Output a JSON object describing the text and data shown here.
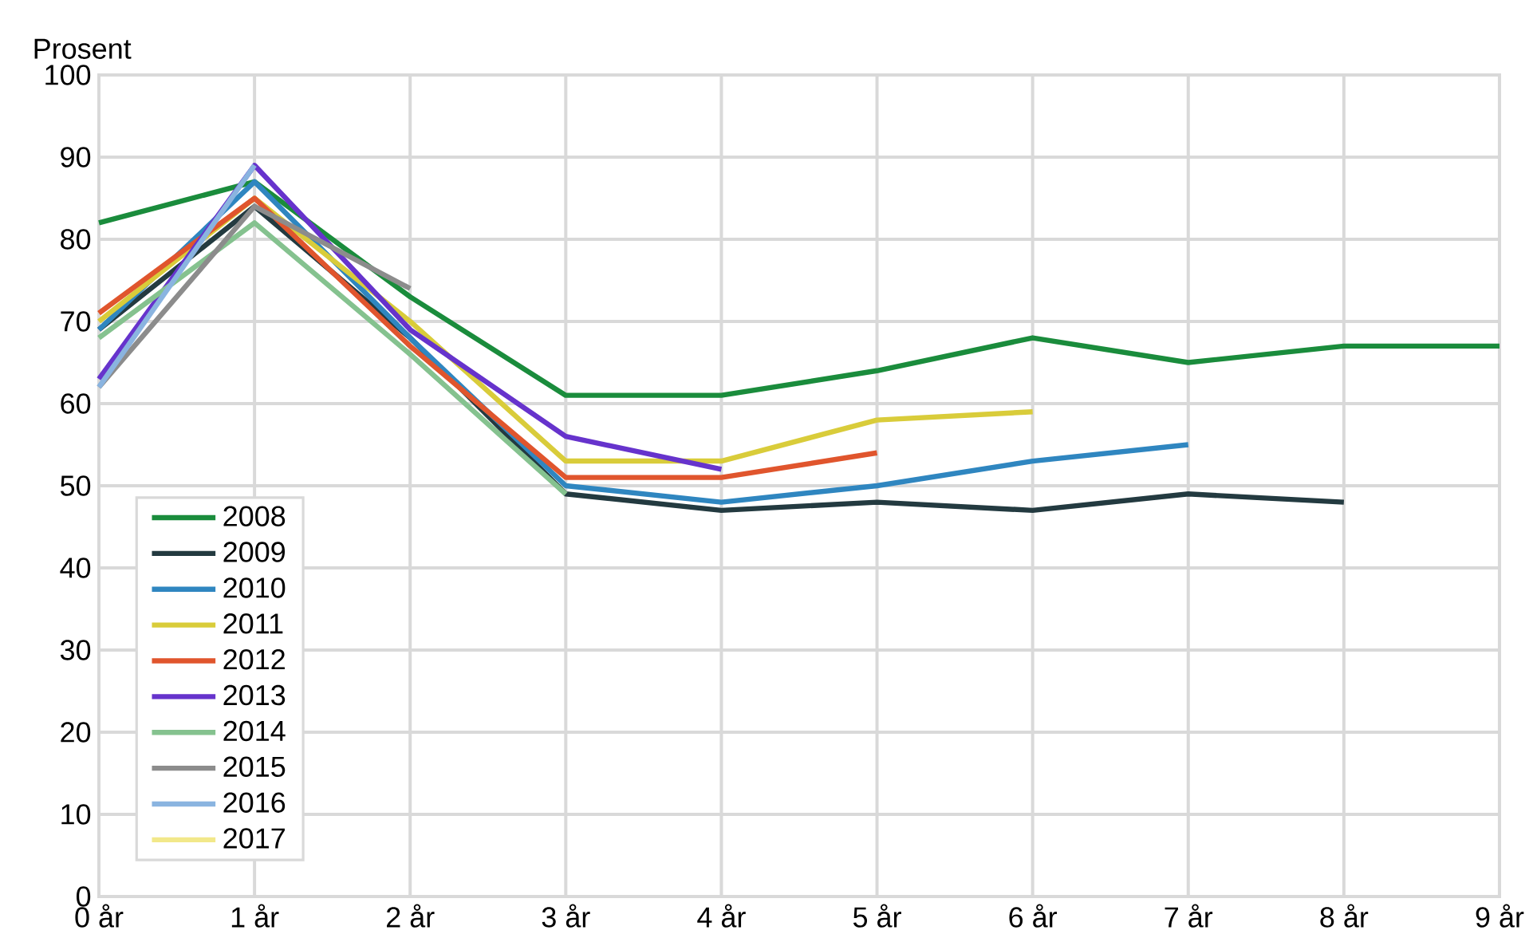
{
  "chart_data": {
    "type": "line",
    "ylabel": "Prosent",
    "categories": [
      "0 år",
      "1 år",
      "2 år",
      "3 år",
      "4 år",
      "5 år",
      "6 år",
      "7 år",
      "8 år",
      "9 år"
    ],
    "ylim": [
      0,
      100
    ],
    "yticks": [
      0,
      10,
      20,
      30,
      40,
      50,
      60,
      70,
      80,
      90,
      100
    ],
    "grid": true,
    "legend": "bottom left",
    "line_style": "solid",
    "series": [
      {
        "name": "2008",
        "color": "#1a8c3c",
        "values": [
          82,
          87,
          73,
          61,
          61,
          64,
          68,
          65,
          67,
          67
        ]
      },
      {
        "name": "2009",
        "color": "#233a40",
        "values": [
          69,
          84,
          68,
          49,
          47,
          48,
          47,
          49,
          48,
          null
        ]
      },
      {
        "name": "2010",
        "color": "#2f86c0",
        "values": [
          69,
          87,
          68,
          50,
          48,
          50,
          53,
          55,
          null,
          null
        ]
      },
      {
        "name": "2011",
        "color": "#d9cc3a",
        "values": [
          70,
          85,
          70,
          53,
          53,
          58,
          59,
          null,
          null,
          null
        ]
      },
      {
        "name": "2012",
        "color": "#e0552d",
        "values": [
          71,
          85,
          67,
          51,
          51,
          54,
          null,
          null,
          null,
          null
        ]
      },
      {
        "name": "2013",
        "color": "#6633cc",
        "values": [
          63,
          89,
          69,
          56,
          52,
          null,
          null,
          null,
          null,
          null
        ]
      },
      {
        "name": "2014",
        "color": "#85c28f",
        "values": [
          68,
          82,
          66,
          49,
          null,
          null,
          null,
          null,
          null,
          null
        ]
      },
      {
        "name": "2015",
        "color": "#8c8c8c",
        "values": [
          62,
          84,
          74,
          null,
          null,
          null,
          null,
          null,
          null,
          null
        ]
      },
      {
        "name": "2016",
        "color": "#8ab4e0",
        "values": [
          62,
          89,
          null,
          null,
          null,
          null,
          null,
          null,
          null,
          null
        ]
      },
      {
        "name": "2017",
        "color": "#f2e88a",
        "values": [
          null,
          null,
          null,
          null,
          null,
          null,
          null,
          null,
          null,
          null
        ]
      }
    ]
  }
}
